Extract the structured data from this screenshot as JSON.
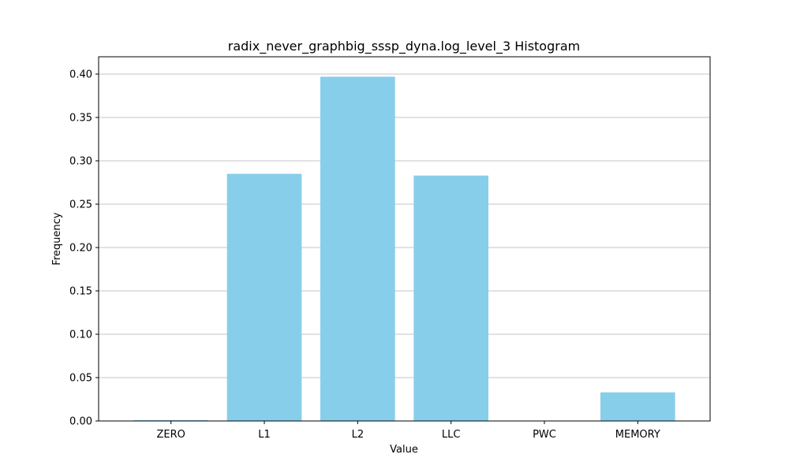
{
  "chart_data": {
    "type": "bar",
    "title": "radix_never_graphbig_sssp_dyna.log_level_3 Histogram",
    "xlabel": "Value",
    "ylabel": "Frequency",
    "categories": [
      "ZERO",
      "L1",
      "L2",
      "LLC",
      "PWC",
      "MEMORY"
    ],
    "values": [
      0.001,
      0.285,
      0.397,
      0.283,
      0.0,
      0.033
    ],
    "ylim": [
      0,
      0.42
    ],
    "yticks": [
      0.0,
      0.05,
      0.1,
      0.15,
      0.2,
      0.25,
      0.3,
      0.35,
      0.4
    ],
    "ytick_labels": [
      "0.00",
      "0.05",
      "0.10",
      "0.15",
      "0.20",
      "0.25",
      "0.30",
      "0.35",
      "0.40"
    ],
    "grid": "horizontal",
    "bar_color": "#87ceeb"
  }
}
